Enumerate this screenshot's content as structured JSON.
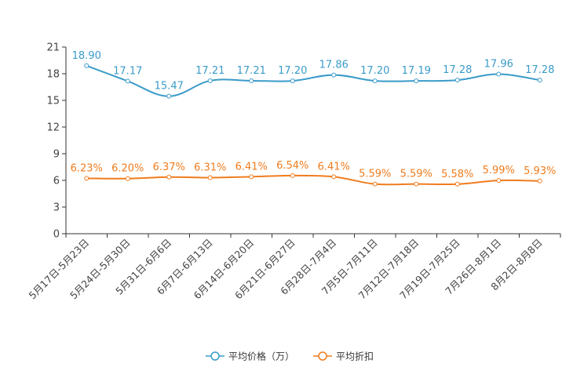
{
  "chart_data": {
    "type": "line",
    "categories": [
      "5月17日-5月23日",
      "5月24日-5月30日",
      "5月31日-6月6日",
      "6月7日-6月13日",
      "6月14日-6月20日",
      "6月21日-6月27日",
      "6月28日-7月4日",
      "7月5日-7月11日",
      "7月12日-7月18日",
      "7月19日-7月25日",
      "7月26日-8月1日",
      "8月2日-8月8日"
    ],
    "ylim": [
      0,
      21
    ],
    "yticks": [
      0,
      3,
      6,
      9,
      12,
      15,
      18,
      21
    ],
    "series": [
      {
        "name": "平均价格（万）",
        "color": "#3a9bc9",
        "values": [
          18.9,
          17.17,
          15.47,
          17.21,
          17.21,
          17.2,
          17.86,
          17.2,
          17.19,
          17.28,
          17.96,
          17.28
        ],
        "labels": [
          "18.90",
          "17.17",
          "15.47",
          "17.21",
          "17.21",
          "17.20",
          "17.86",
          "17.20",
          "17.19",
          "17.28",
          "17.96",
          "17.28"
        ]
      },
      {
        "name": "平均折扣",
        "color": "#f07c1e",
        "values": [
          6.23,
          6.2,
          6.37,
          6.31,
          6.41,
          6.54,
          6.41,
          5.59,
          5.59,
          5.58,
          5.99,
          5.93
        ],
        "labels": [
          "6.23%",
          "6.20%",
          "6.37%",
          "6.31%",
          "6.41%",
          "6.54%",
          "6.41%",
          "5.59%",
          "5.59%",
          "5.58%",
          "5.99%",
          "5.93%"
        ]
      }
    ],
    "legend_position": "bottom-center"
  }
}
